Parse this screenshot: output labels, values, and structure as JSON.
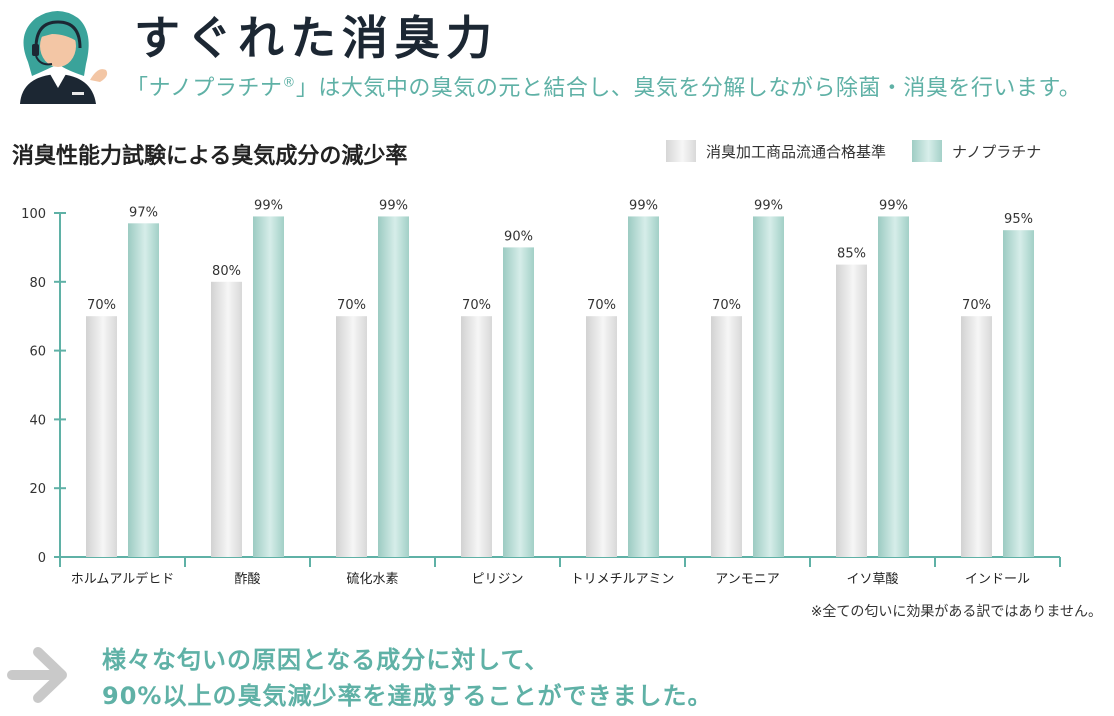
{
  "header": {
    "title": "すぐれた消臭力",
    "subtitle_main": "「ナノプラチナ",
    "subtitle_reg": "®",
    "subtitle_rest": "」は大気中の臭気の元と結合し、臭気を分解しながら除菌・消臭を行います。",
    "avatar_icon": "support-operator-icon"
  },
  "colors": {
    "accent": "#5fb1a6",
    "standard_bar": "#e3e3e3",
    "nano_bar": "#b7ddd6",
    "axis": "#5fb1a6"
  },
  "chart_data": {
    "type": "bar",
    "title": "消臭性能力試験による臭気成分の減少率",
    "categories": [
      "ホルムアルデヒド",
      "酢酸",
      "硫化水素",
      "ピリジン",
      "トリメチルアミン",
      "アンモニア",
      "イソ草酸",
      "インドール"
    ],
    "series": [
      {
        "name": "消臭加工商品流通合格基準",
        "values": [
          70,
          80,
          70,
          70,
          70,
          70,
          85,
          70
        ],
        "labels": [
          "70%",
          "80%",
          "70%",
          "70%",
          "70%",
          "70%",
          "85%",
          "70%"
        ]
      },
      {
        "name": "ナノプラチナ",
        "values": [
          97,
          99,
          99,
          90,
          99,
          99,
          99,
          95
        ],
        "labels": [
          "97%",
          "99%",
          "99%",
          "90%",
          "99%",
          "99%",
          "99%",
          "95%"
        ]
      }
    ],
    "ylim": [
      0,
      100
    ],
    "yticks": [
      "0",
      "20",
      "40",
      "60",
      "80",
      "100"
    ],
    "xlabel": "",
    "ylabel": "",
    "legend_position": "top-right",
    "grid": false
  },
  "note": "※全ての匂いに効果がある訳ではありません。",
  "conclusion": {
    "line1": "様々な匂いの原因となる成分に対して、",
    "line2": "90%以上の臭気減少率を達成することができました。",
    "arrow_icon": "arrow-right-icon"
  }
}
